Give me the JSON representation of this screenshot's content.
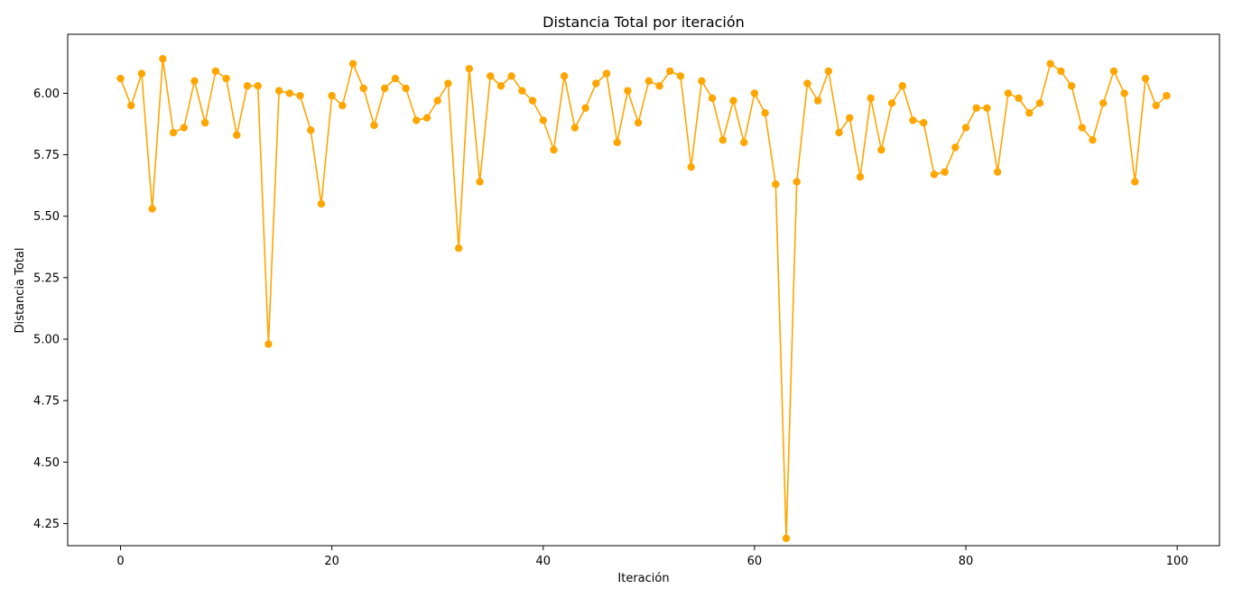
{
  "chart_data": {
    "type": "line",
    "title": "Distancia Total por iteración",
    "xlabel": "Iteración",
    "ylabel": "Distancia Total",
    "xlim": [
      -5,
      104
    ],
    "ylim": [
      4.16,
      6.24
    ],
    "xticks": [
      0,
      20,
      40,
      60,
      80,
      100
    ],
    "xtick_labels": [
      "0",
      "20",
      "40",
      "60",
      "80",
      "100"
    ],
    "yticks": [
      4.25,
      4.5,
      4.75,
      5.0,
      5.25,
      5.5,
      5.75,
      6.0
    ],
    "ytick_labels": [
      "4.25",
      "4.50",
      "4.75",
      "5.00",
      "5.25",
      "5.50",
      "5.75",
      "6.00"
    ],
    "grid": false,
    "color": "#ffa500",
    "marker": "circle",
    "series": [
      {
        "x": [
          0,
          1,
          2,
          3,
          4,
          5,
          6,
          7,
          8,
          9,
          10,
          11,
          12,
          13,
          14,
          15,
          16,
          17,
          18,
          19,
          20,
          21,
          22,
          23,
          24,
          25,
          26,
          27,
          28,
          29,
          30,
          31,
          32,
          33,
          34,
          35,
          36,
          37,
          38,
          39,
          40,
          41,
          42,
          43,
          44,
          45,
          46,
          47,
          48,
          49,
          50,
          51,
          52,
          53,
          54,
          55,
          56,
          57,
          58,
          59,
          60,
          61,
          62,
          63,
          64,
          65,
          66,
          67,
          68,
          69,
          70,
          71,
          72,
          73,
          74,
          75,
          76,
          77,
          78,
          79,
          80,
          81,
          82,
          83,
          84,
          85,
          86,
          87,
          88,
          89,
          90,
          91,
          92,
          93,
          94,
          95,
          96,
          97,
          98,
          99
        ],
        "values": [
          6.06,
          5.95,
          6.08,
          5.53,
          6.14,
          5.84,
          5.86,
          6.05,
          5.88,
          6.09,
          6.06,
          5.83,
          6.03,
          6.03,
          4.98,
          6.01,
          6.0,
          5.99,
          5.85,
          5.55,
          5.99,
          5.95,
          6.12,
          6.02,
          5.87,
          6.02,
          6.06,
          6.02,
          5.89,
          5.9,
          5.97,
          6.04,
          5.37,
          6.1,
          5.64,
          6.07,
          6.03,
          6.07,
          6.01,
          5.97,
          5.89,
          5.77,
          6.07,
          5.86,
          5.94,
          6.04,
          6.08,
          5.8,
          6.01,
          5.88,
          6.05,
          6.03,
          6.09,
          6.07,
          5.7,
          6.05,
          5.98,
          5.81,
          5.97,
          5.8,
          6.0,
          5.92,
          5.63,
          4.19,
          5.64,
          6.04,
          5.97,
          6.09,
          5.84,
          5.9,
          5.66,
          5.98,
          5.77,
          5.96,
          6.03,
          5.89,
          5.88,
          5.67,
          5.68,
          5.78,
          5.86,
          5.94,
          5.94,
          5.68,
          6.0,
          5.98,
          5.92,
          5.96,
          6.12,
          6.09,
          6.03,
          5.86,
          5.81,
          5.96,
          6.09,
          6.0,
          5.64,
          6.06,
          5.95,
          5.99
        ]
      }
    ]
  }
}
